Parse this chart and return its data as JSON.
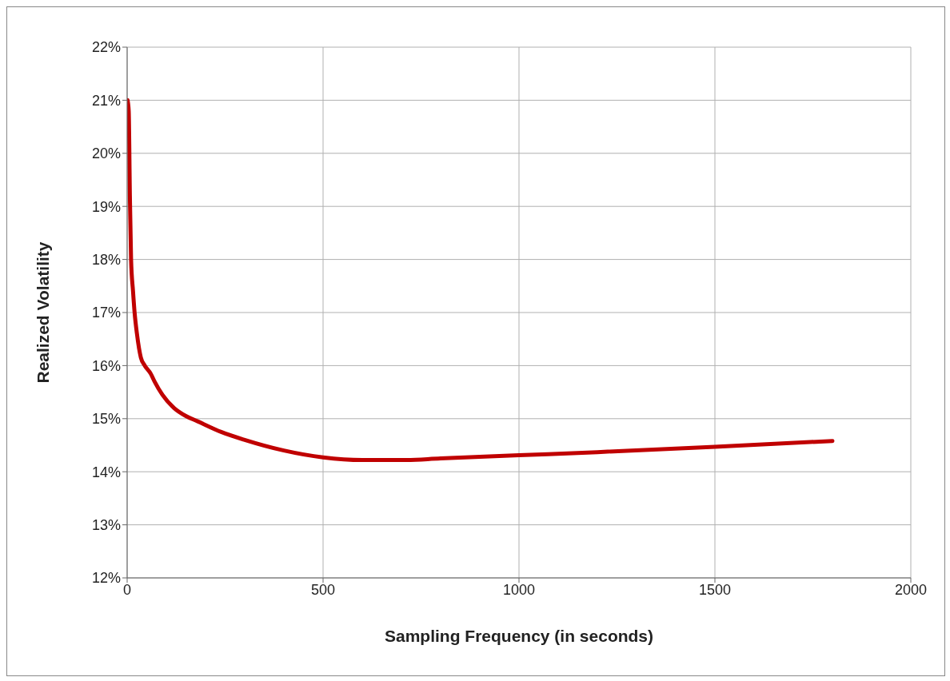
{
  "chart_data": {
    "type": "line",
    "xlabel": "Sampling Frequency (in seconds)",
    "ylabel": "Realized Volatility",
    "x": [
      1,
      4,
      7,
      10,
      15,
      19,
      25,
      35,
      45,
      60,
      70,
      90,
      120,
      150,
      180,
      240,
      300,
      400,
      500,
      600,
      700,
      800,
      900,
      1000,
      1200,
      1500,
      1800
    ],
    "series": [
      {
        "color": "#c00000",
        "values": [
          21.0,
          20.8,
          19.2,
          18.0,
          17.4,
          17.0,
          16.6,
          16.15,
          16.0,
          15.85,
          15.7,
          15.45,
          15.2,
          15.05,
          14.95,
          14.75,
          14.6,
          14.4,
          14.27,
          14.22,
          14.22,
          14.25,
          14.28,
          14.31,
          14.37,
          14.47,
          14.58
        ]
      }
    ],
    "xlim": [
      0,
      2000
    ],
    "xticks": [
      0,
      500,
      1000,
      1500,
      2000
    ],
    "ylim": [
      12,
      22
    ],
    "yticks": [
      {
        "value": 12,
        "label": "12%"
      },
      {
        "value": 13,
        "label": "13%"
      },
      {
        "value": 14,
        "label": "14%"
      },
      {
        "value": 15,
        "label": "15%"
      },
      {
        "value": 16,
        "label": "16%"
      },
      {
        "value": 17,
        "label": "17%"
      },
      {
        "value": 18,
        "label": "18%"
      },
      {
        "value": 19,
        "label": "19%"
      },
      {
        "value": 20,
        "label": "20%"
      },
      {
        "value": 21,
        "label": "21%"
      },
      {
        "value": 22,
        "label": "22%"
      }
    ],
    "grid": true,
    "marker": "none",
    "line_style": "solid"
  }
}
